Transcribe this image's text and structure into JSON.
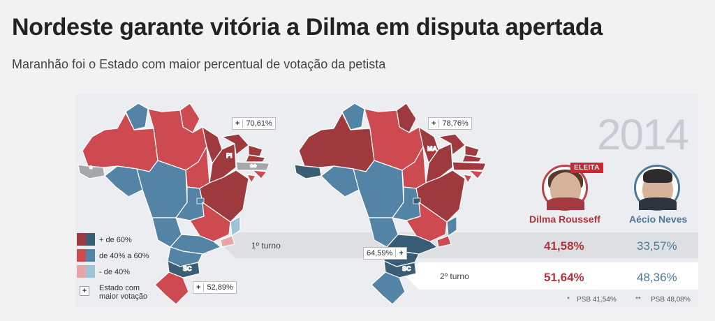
{
  "title": "Nordeste garante vitória a Dilma em disputa apertada",
  "subtitle": "Maranhão foi o Estado com maior percentual de votação da petista",
  "year": "2014",
  "colors": {
    "red_dark": "#9e3a3e",
    "red": "#cc4a50",
    "red_light": "#e8a5a8",
    "blue_dark": "#3a5d76",
    "blue": "#5384a6",
    "blue_light": "#9fc3d6",
    "gray": "#a5a7ab"
  },
  "legend": {
    "strong": "+ de 60%",
    "mid": "de 40% a 60%",
    "weak": "- de 40%",
    "most_voted": "Estado com maior votação"
  },
  "map1": {
    "states": {
      "pi": "PI",
      "sc": "SC"
    },
    "top_red": {
      "plus": "+",
      "value": "70,61%"
    },
    "top_blue": {
      "plus": "+",
      "value": "52,89%"
    },
    "asterisks": {
      "ac": "*",
      "pe": "**"
    }
  },
  "map2": {
    "states": {
      "ma": "MA",
      "sc": "SC"
    },
    "top_red": {
      "plus": "+",
      "value": "78,76%"
    },
    "top_blue": {
      "plus": "+",
      "value": "64,59%"
    }
  },
  "candidates": {
    "dilma": {
      "name": "Dilma Rousseff",
      "badge": "ELEITA",
      "icon": "dilma-portrait"
    },
    "aecio": {
      "name": "Aécio Neves",
      "icon": "aecio-portrait"
    }
  },
  "rounds": [
    {
      "label": "1º turno",
      "dilma": "41,58%",
      "aecio": "33,57%"
    },
    {
      "label": "2º turno",
      "dilma": "51,64%",
      "aecio": "48,36%"
    }
  ],
  "footnotes": {
    "star1_mark": "*",
    "star1_text": "PSB 41,54%",
    "star2_mark": "**",
    "star2_text": "PSB 48,08%"
  }
}
